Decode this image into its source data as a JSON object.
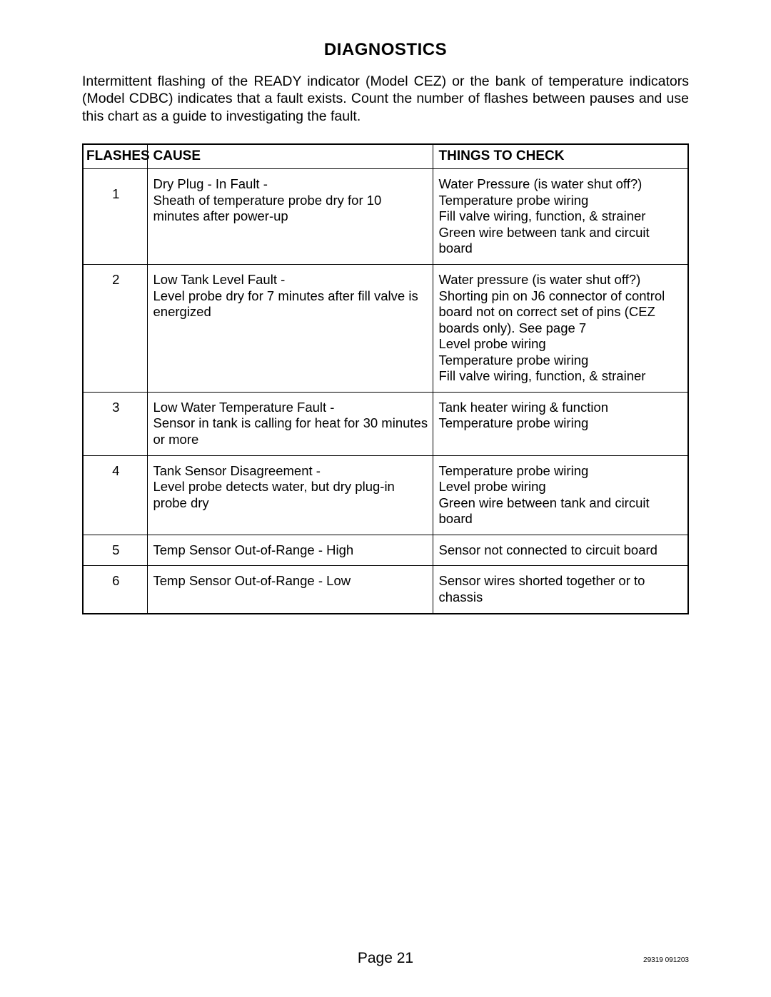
{
  "document": {
    "title": "DIAGNOSTICS",
    "intro": "Intermittent flashing of the READY indicator (Model CEZ) or the bank of temperature indicators (Model CDBC) indicates that a fault exists. Count the number of flashes between pauses and use this chart as a guide to investigating the fault.",
    "page_label": "Page 21",
    "doc_id": "29319 091203"
  },
  "table": {
    "type": "table",
    "headers": {
      "flashes": "FLASHES",
      "cause": "CAUSE",
      "check": "THINGS TO CHECK"
    },
    "column_widths_pct": [
      10.6,
      47.1,
      42.3
    ],
    "border_color": "#000000",
    "background_color": "#ffffff",
    "header_fontsize_pt": 14,
    "body_fontsize_pt": 14,
    "rows": [
      {
        "flashes": "1",
        "cause_title": "Dry Plug - In Fault -",
        "cause_lines": [
          "Sheath of temperature probe dry for 10 minutes after power-up"
        ],
        "check_lines": [
          "Water Pressure (is water shut off?)",
          "Temperature probe wiring",
          "Fill valve wiring, function, & strainer",
          "Green wire between tank and circuit board"
        ],
        "flash_top_pad": "24px"
      },
      {
        "flashes": "2",
        "cause_title": "Low Tank Level Fault -",
        "cause_lines": [
          "Level probe dry for 7 minutes after fill valve is energized"
        ],
        "check_lines": [
          "Water pressure (is water shut off?)",
          "Shorting pin on J6 connector of control board not on correct set of pins (CEZ boards only). See page 7",
          "Level probe wiring",
          "Temperature probe wiring",
          "Fill valve wiring, function, & strainer"
        ],
        "flash_top_pad": "10px"
      },
      {
        "flashes": "3",
        "cause_title": "Low Water Temperature Fault -",
        "cause_lines": [
          "Sensor in tank is calling for heat for 30 minutes or more"
        ],
        "check_lines": [
          "Tank heater wiring & function",
          "Temperature probe wiring"
        ],
        "flash_top_pad": "10px"
      },
      {
        "flashes": "4",
        "cause_title": "Tank Sensor Disagreement -",
        "cause_lines": [
          "Level probe detects water, but dry plug-in probe dry"
        ],
        "check_lines": [
          "Temperature probe wiring",
          "Level probe wiring",
          "Green wire between tank and circuit board"
        ],
        "flash_top_pad": "10px"
      },
      {
        "flashes": "5",
        "cause_title": "Temp Sensor Out-of-Range - High",
        "cause_lines": [],
        "check_lines": [
          "Sensor not connected to circuit board"
        ],
        "flash_top_pad": "10px"
      },
      {
        "flashes": "6",
        "cause_title": "Temp Sensor Out-of-Range - Low",
        "cause_lines": [],
        "check_lines": [
          "Sensor wires shorted together or to chassis"
        ],
        "flash_top_pad": "10px"
      }
    ]
  }
}
